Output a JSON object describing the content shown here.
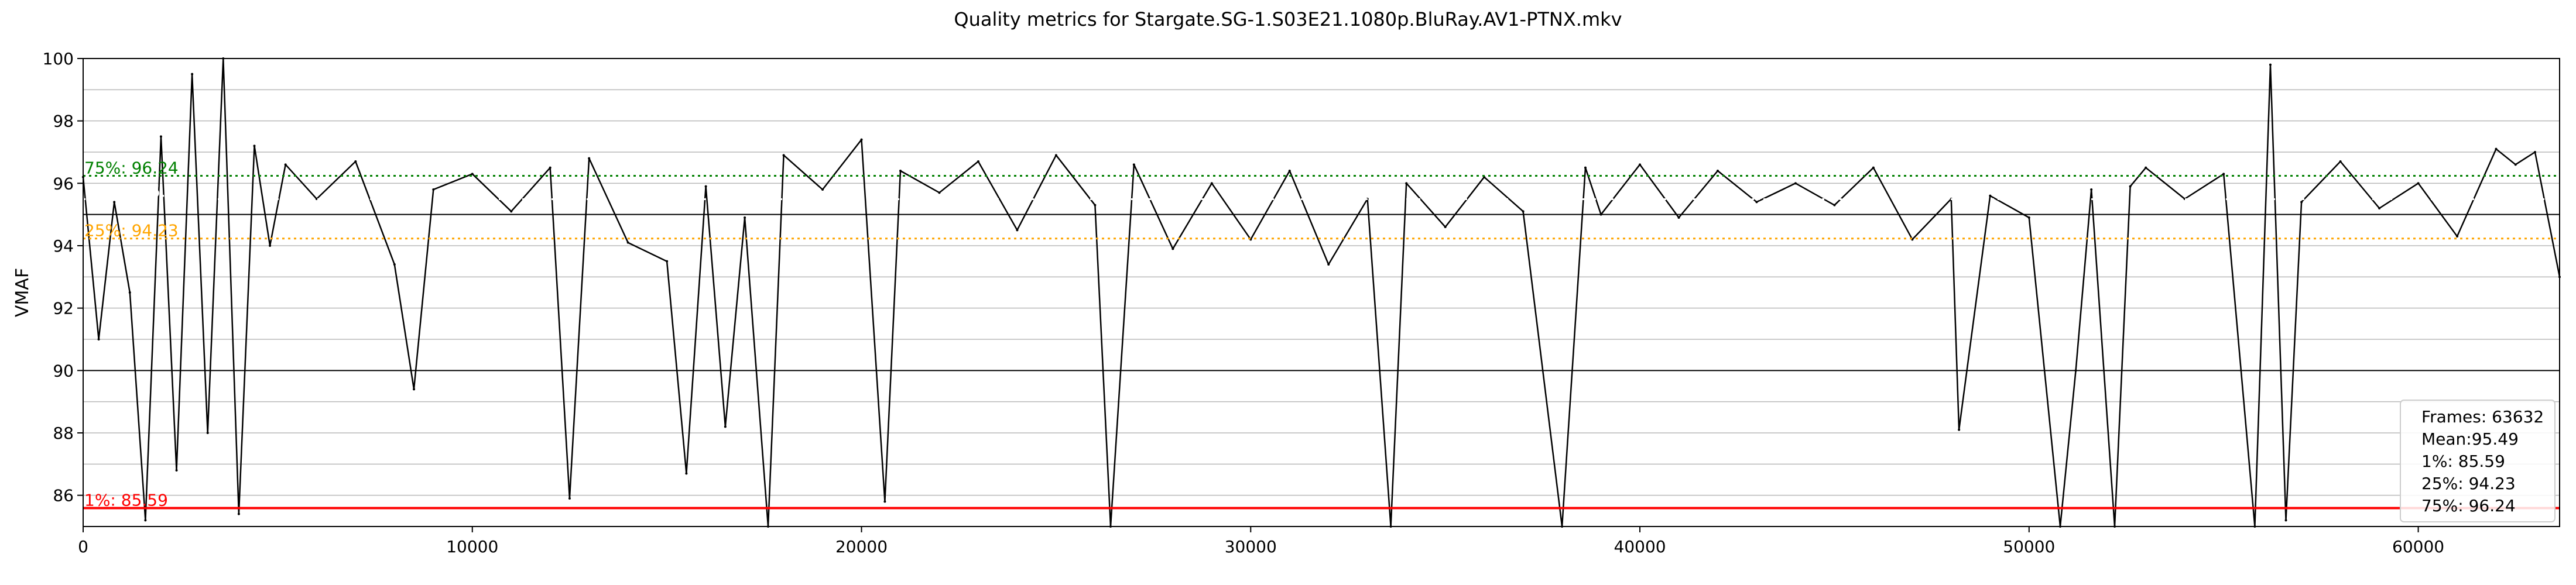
{
  "chart_data": {
    "type": "line",
    "title": "Quality metrics for Stargate.SG-1.S03E21.1080p.BluRay.AV1-PTNX.mkv",
    "xlabel": "",
    "ylabel": "VMAF",
    "xlim": [
      0,
      63632
    ],
    "ylim": [
      85,
      100
    ],
    "x_ticks": [
      0,
      10000,
      20000,
      30000,
      40000,
      50000,
      60000
    ],
    "y_ticks": [
      86,
      88,
      90,
      92,
      94,
      96,
      98,
      100
    ],
    "y_ticks_major": [
      90,
      95,
      100
    ],
    "grid": true,
    "series": [
      {
        "name": "VMAF",
        "color": "#000000",
        "x": [
          0,
          400,
          800,
          1200,
          1600,
          2000,
          2400,
          2800,
          3200,
          3600,
          4000,
          4400,
          4800,
          5200,
          6000,
          7000,
          8000,
          8500,
          9000,
          10000,
          11000,
          12000,
          12500,
          13000,
          14000,
          15000,
          15500,
          16000,
          16500,
          17000,
          17600,
          18000,
          19000,
          20000,
          20600,
          21000,
          22000,
          23000,
          24000,
          25000,
          26000,
          26400,
          27000,
          28000,
          29000,
          30000,
          31000,
          32000,
          33000,
          33600,
          34000,
          35000,
          36000,
          37000,
          38000,
          38600,
          39000,
          40000,
          41000,
          42000,
          43000,
          44000,
          45000,
          46000,
          47000,
          48000,
          48200,
          49000,
          50000,
          50800,
          51200,
          51600,
          52200,
          52600,
          53000,
          54000,
          55000,
          55800,
          56200,
          56600,
          57000,
          58000,
          59000,
          60000,
          61000,
          62000,
          62500,
          63000,
          63632
        ],
        "y": [
          96.2,
          91.0,
          95.4,
          92.5,
          85.2,
          97.5,
          86.8,
          99.5,
          88.0,
          100.0,
          85.4,
          97.2,
          94.0,
          96.6,
          95.5,
          96.7,
          93.4,
          89.4,
          95.8,
          96.3,
          95.1,
          96.5,
          85.9,
          96.8,
          94.1,
          93.5,
          86.7,
          95.9,
          88.2,
          94.9,
          85.0,
          96.9,
          95.8,
          97.4,
          85.8,
          96.4,
          95.7,
          96.7,
          94.5,
          96.9,
          95.3,
          85.0,
          96.6,
          93.9,
          96.0,
          94.2,
          96.4,
          93.4,
          95.5,
          85.0,
          96.0,
          94.6,
          96.2,
          95.1,
          85.0,
          96.5,
          95.0,
          96.6,
          94.9,
          96.4,
          95.4,
          96.0,
          95.3,
          96.5,
          94.2,
          95.5,
          88.1,
          95.6,
          94.9,
          85.0,
          90.0,
          95.8,
          85.0,
          95.9,
          96.5,
          95.5,
          96.3,
          85.0,
          99.8,
          85.2,
          95.4,
          96.7,
          95.2,
          96.0,
          94.3,
          97.1,
          96.6,
          97.0,
          93.0
        ]
      }
    ],
    "reference_lines": [
      {
        "label": "1%: 85.59",
        "value": 85.59,
        "color": "#ff0000",
        "style": "solid"
      },
      {
        "label": "25%: 94.23",
        "value": 94.23,
        "color": "#ffa500",
        "style": "dotted"
      },
      {
        "label": "Mean: 95.49",
        "value": 95.49,
        "color": "#ffffff",
        "style": "dotted"
      },
      {
        "label": "75%: 96.24",
        "value": 96.24,
        "color": "#008000",
        "style": "dotted"
      }
    ],
    "stats_box": {
      "placement": "bottom-right",
      "lines": [
        "Frames: 63632",
        "Mean:95.49",
        "1%: 85.59",
        "25%: 94.23",
        "75%: 96.24"
      ]
    }
  }
}
